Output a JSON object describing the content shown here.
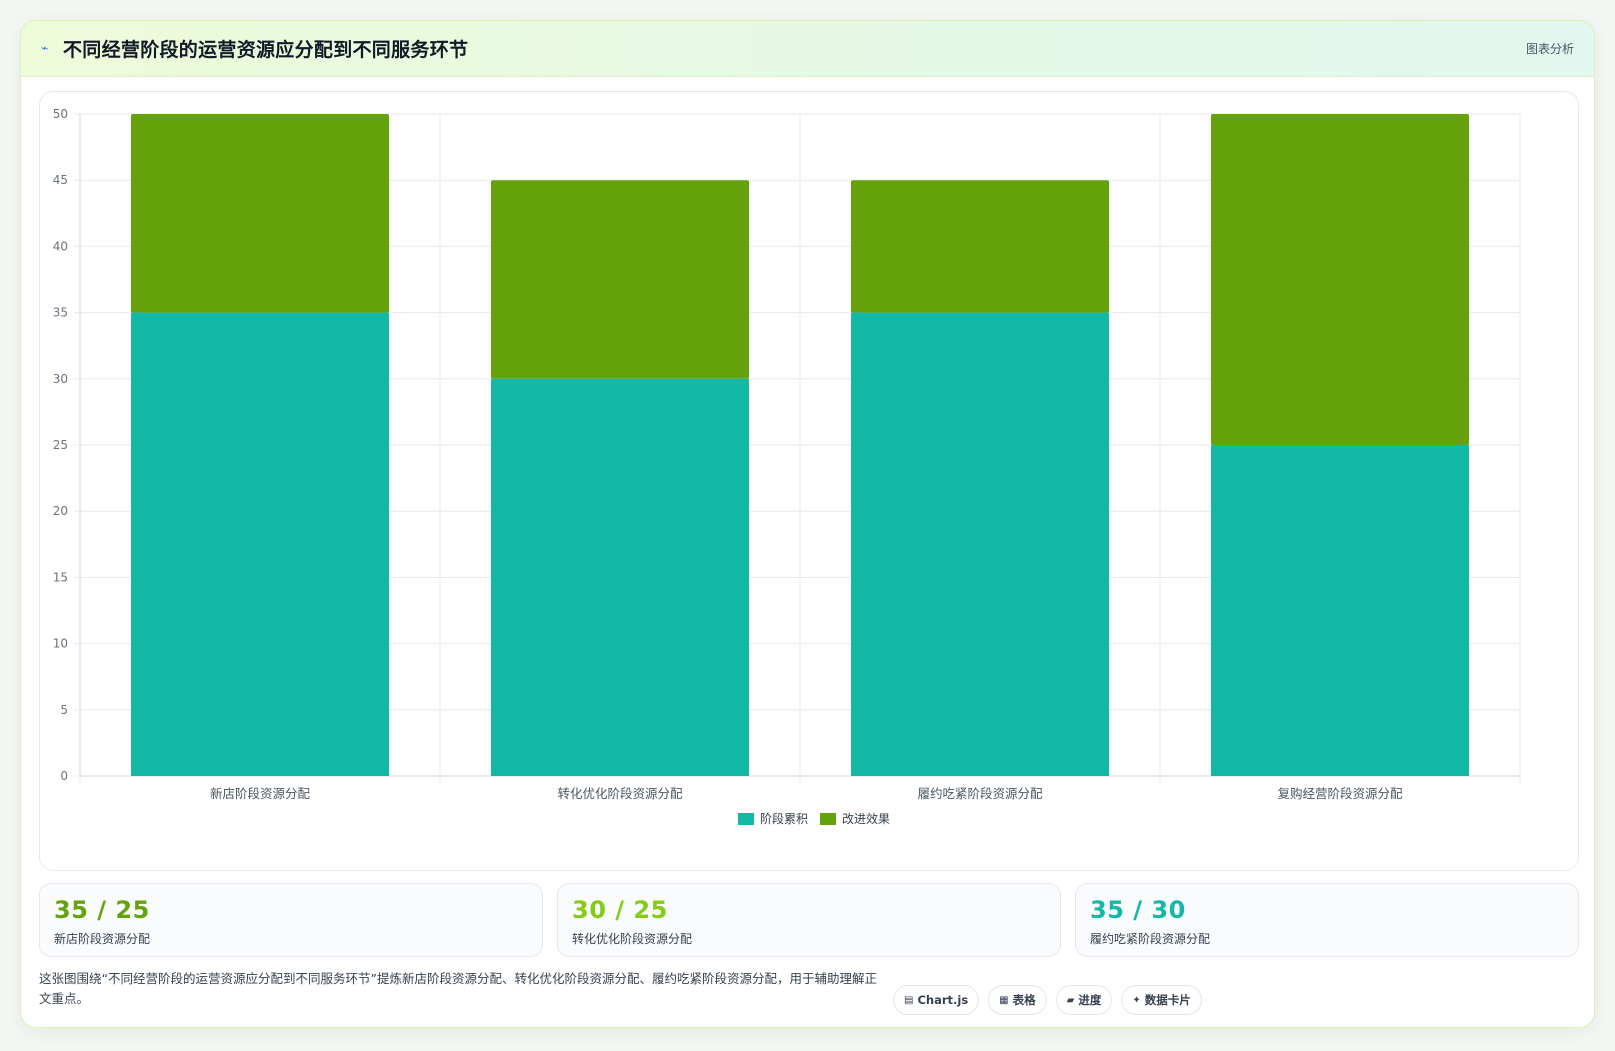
{
  "header": {
    "icon": "chart-line-icon",
    "title": "不同经营阶段的运营资源应分配到不同服务环节",
    "tag": "图表分析"
  },
  "chart_data": {
    "type": "bar",
    "stacked": true,
    "categories": [
      "新店阶段资源分配",
      "转化优化阶段资源分配",
      "履约吃紧阶段资源分配",
      "复购经营阶段资源分配"
    ],
    "series": [
      {
        "name": "阶段累积",
        "values": [
          35,
          30,
          35,
          25
        ],
        "color": "#14b8a6"
      },
      {
        "name": "改进效果",
        "values": [
          15,
          15,
          10,
          25
        ],
        "color": "#65a30d"
      }
    ],
    "ylim": [
      0,
      50
    ],
    "yticks": [
      0,
      5,
      10,
      15,
      20,
      25,
      30,
      35,
      40,
      45,
      50
    ],
    "grid": true,
    "legend": "bottom",
    "title": "",
    "xlabel": "",
    "ylabel": ""
  },
  "stats": [
    {
      "value": "35 / 25",
      "label": "新店阶段资源分配",
      "color": "#65a30d"
    },
    {
      "value": "30 / 25",
      "label": "转化优化阶段资源分配",
      "color": "#84cc16"
    },
    {
      "value": "35 / 30",
      "label": "履约吃紧阶段资源分配",
      "color": "#14b8a6"
    }
  ],
  "description": "这张图围绕“不同经营阶段的运营资源应分配到不同服务环节”提炼新店阶段资源分配、转化优化阶段资源分配、履约吃紧阶段资源分配，用于辅助理解正文重点。",
  "pills": [
    {
      "icon": "▤",
      "label": "Chart.js"
    },
    {
      "icon": "▦",
      "label": "表格"
    },
    {
      "icon": "▰",
      "label": "进度"
    },
    {
      "icon": "✦",
      "label": "数据卡片"
    }
  ]
}
